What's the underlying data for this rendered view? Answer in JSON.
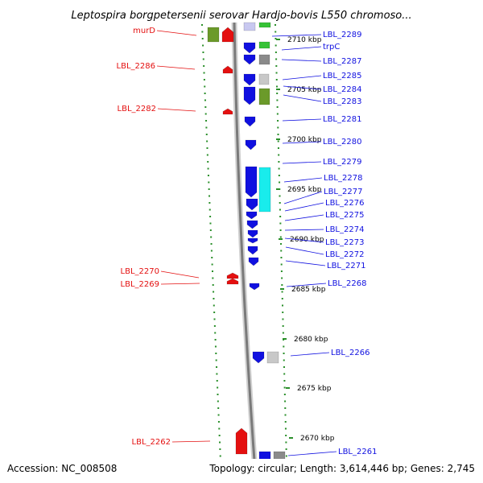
{
  "title": "Leptospira borgpetersenii serovar Hardjo-bovis L550 chromoso...",
  "footer": {
    "accession": "Accession: NC_008508",
    "topology": "Topology: circular; Length: 3,614,446 bp; Genes: 2,745"
  },
  "colors": {
    "blue": "#1010e0",
    "red": "#e41010",
    "olive": "#6b9a2a",
    "green": "#36c236",
    "gray": "#8a8a8a",
    "lightgray": "#c8c8c8",
    "cyan": "#19ecec",
    "dotgreen": "#2a8f2a"
  },
  "kbp_labels": [
    "2710 kbp",
    "2705 kbp",
    "2700 kbp",
    "2695 kbp",
    "2690 kbp",
    "2685 kbp",
    "2680 kbp",
    "2675 kbp",
    "2670 kbp"
  ],
  "left_labels": [
    "murD",
    "LBL_2286",
    "LBL_2282",
    "LBL_2270",
    "LBL_2269",
    "LBL_2262"
  ],
  "right_labels": [
    "LBL_2289",
    "trpC",
    "LBL_2287",
    "LBL_2285",
    "LBL_2284",
    "LBL_2283",
    "LBL_2281",
    "LBL_2280",
    "LBL_2279",
    "LBL_2278",
    "LBL_2277",
    "LBL_2276",
    "LBL_2275",
    "LBL_2274",
    "LBL_2273",
    "LBL_2272",
    "LBL_2271",
    "LBL_2268",
    "LBL_2266",
    "LBL_2261"
  ]
}
